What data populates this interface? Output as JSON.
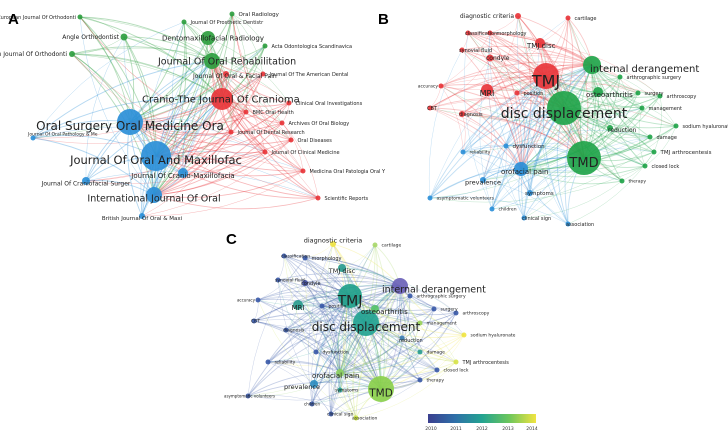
{
  "panels": [
    {
      "letter": "A",
      "nodes": [
        {
          "label": "European Journal Of Orthodonti",
          "color": "#2e9e3f"
        },
        {
          "label": "Journal Of Prosthetic Dentistr",
          "color": "#2e9e3f"
        },
        {
          "label": "Oral Radiology",
          "color": "#2e9e3f"
        },
        {
          "label": "Angle Orthodontist",
          "color": "#2e9e3f"
        },
        {
          "label": "Dentomaxillofacial Radiology",
          "color": "#2e9e3f"
        },
        {
          "label": "Acta Odontologica Scandinavica",
          "color": "#2e9e3f"
        },
        {
          "label": "American Journal Of Orthodonti",
          "color": "#2e9e3f"
        },
        {
          "label": "Journal Of Oral Rehabilitation",
          "color": "#2e9e3f"
        },
        {
          "label": "Journal Of Oral & Facial Pain",
          "color": "#e8353a"
        },
        {
          "label": "Journal Of The American Dental",
          "color": "#e8353a"
        },
        {
          "label": "Cranio-The Journal Of Cranioma",
          "color": "#e8353a"
        },
        {
          "label": "Clinical Oral Investigations",
          "color": "#e8353a"
        },
        {
          "label": "Oral Surgery Oral Medicine Ora",
          "color": "#2b8fd8"
        },
        {
          "label": "BMC Oral Health",
          "color": "#e8353a"
        },
        {
          "label": "Archives Of Oral Biology",
          "color": "#e8353a"
        },
        {
          "label": "Journal Of Dental Research",
          "color": "#e8353a"
        },
        {
          "label": "Journal Of Oral Pathology & Me",
          "color": "#2b8fd8"
        },
        {
          "label": "Oral Diseases",
          "color": "#e8353a"
        },
        {
          "label": "Journal Of Oral And Maxillofac",
          "color": "#2b8fd8"
        },
        {
          "label": "Journal Of Clinical Medicine",
          "color": "#e8353a"
        },
        {
          "label": "Journal Of Cranio-Maxillofacia",
          "color": "#2b8fd8"
        },
        {
          "label": "Medicina Oral Patologia Oral Y",
          "color": "#e8353a"
        },
        {
          "label": "Journal Of Craniofacial Surger",
          "color": "#2b8fd8"
        },
        {
          "label": "International Journal Of Oral",
          "color": "#2b8fd8"
        },
        {
          "label": "British Journal Of Oral & Maxi",
          "color": "#2b8fd8"
        },
        {
          "label": "Scientific Reports",
          "color": "#e8353a"
        }
      ]
    },
    {
      "letter": "B",
      "nodes": [
        {
          "label": "diagnostic criteria",
          "color": "#e8353a"
        },
        {
          "label": "cartilage",
          "color": "#e8353a"
        },
        {
          "label": "classification",
          "color": "#e8353a"
        },
        {
          "label": "morphology",
          "color": "#e8353a"
        },
        {
          "label": "TMJ disc",
          "color": "#e8353a"
        },
        {
          "label": "synovial fluid",
          "color": "#e8353a"
        },
        {
          "label": "condyle",
          "color": "#e8353a"
        },
        {
          "label": "TMJ",
          "color": "#e8353a"
        },
        {
          "label": "internal derangement",
          "color": "#21a44a"
        },
        {
          "label": "arthrographic surgery",
          "color": "#21a44a"
        },
        {
          "label": "accuracy",
          "color": "#e8353a"
        },
        {
          "label": "MRI",
          "color": "#e8353a"
        },
        {
          "label": "position",
          "color": "#e8353a"
        },
        {
          "label": "osteoarthritis",
          "color": "#21a44a"
        },
        {
          "label": "surgery",
          "color": "#21a44a"
        },
        {
          "label": "arthroscopy",
          "color": "#21a44a"
        },
        {
          "label": "disc displacement",
          "color": "#21a44a"
        },
        {
          "label": "CBT",
          "color": "#e8353a"
        },
        {
          "label": "diagnosis",
          "color": "#e8353a"
        },
        {
          "label": "reduction",
          "color": "#21a44a"
        },
        {
          "label": "sodium hyaluronate",
          "color": "#21a44a"
        },
        {
          "label": "reliability",
          "color": "#2b8fd8"
        },
        {
          "label": "prevalence",
          "color": "#2b8fd8"
        },
        {
          "label": "orofacial pain",
          "color": "#2b8fd8"
        },
        {
          "label": "dysfunction",
          "color": "#2b8fd8"
        },
        {
          "label": "TMD",
          "color": "#21a44a"
        },
        {
          "label": "TMJ arthrocentesis",
          "color": "#21a44a"
        },
        {
          "label": "closed lock",
          "color": "#21a44a"
        },
        {
          "label": "symptoms",
          "color": "#2b8fd8"
        },
        {
          "label": "therapy",
          "color": "#21a44a"
        },
        {
          "label": "asymptomatic volunteers",
          "color": "#2b8fd8"
        },
        {
          "label": "children",
          "color": "#2b8fd8"
        },
        {
          "label": "clinical sign",
          "color": "#2b8fd8"
        },
        {
          "label": "association",
          "color": "#2b8fd8"
        },
        {
          "label": "management",
          "color": "#21a44a"
        },
        {
          "label": "damage",
          "color": "#21a44a"
        }
      ]
    },
    {
      "letter": "C",
      "nodes": [
        {
          "label": "diagnostic criteria",
          "color": "#f0e442"
        },
        {
          "label": "cartilage",
          "color": "#a8d86a"
        },
        {
          "label": "classification",
          "color": "#3b5aa8"
        },
        {
          "label": "morphology",
          "color": "#3b5aa8"
        },
        {
          "label": "TMJ disc",
          "color": "#2a9c8e"
        },
        {
          "label": "synovial fluid",
          "color": "#3b5aa8"
        },
        {
          "label": "condyle",
          "color": "#3e4a9a"
        },
        {
          "label": "TMJ",
          "color": "#1fa08a"
        },
        {
          "label": "internal derangement",
          "color": "#6b62b8"
        },
        {
          "label": "arthrographic surgery",
          "color": "#3b5aa8"
        },
        {
          "label": "accuracy",
          "color": "#3b5aa8"
        },
        {
          "label": "MRI",
          "color": "#2a9c8e"
        },
        {
          "label": "position",
          "color": "#3b5aa8"
        },
        {
          "label": "osteoarthritis",
          "color": "#56c26a"
        },
        {
          "label": "surgery",
          "color": "#3b5aa8"
        },
        {
          "label": "arthroscopy",
          "color": "#3b5aa8"
        },
        {
          "label": "disc displacement",
          "color": "#23a391"
        },
        {
          "label": "CBT",
          "color": "#3b5aa8"
        },
        {
          "label": "diagnosis",
          "color": "#3b5aa8"
        },
        {
          "label": "reduction",
          "color": "#3b7db0"
        },
        {
          "label": "sodium hyaluronate",
          "color": "#f0e442"
        },
        {
          "label": "management",
          "color": "#9bd45a"
        },
        {
          "label": "damage",
          "color": "#2a9c8e"
        },
        {
          "label": "reliability",
          "color": "#3b5aa8"
        },
        {
          "label": "dysfunction",
          "color": "#3b5aa8"
        },
        {
          "label": "orofacial pain",
          "color": "#8dd060"
        },
        {
          "label": "prevalence",
          "color": "#2e8dc0"
        },
        {
          "label": "TMD",
          "color": "#8bd04c"
        },
        {
          "label": "TMJ arthrocentesis",
          "color": "#d7e34a"
        },
        {
          "label": "closed lock",
          "color": "#3b5aa8"
        },
        {
          "label": "symptoms",
          "color": "#2a9c8e"
        },
        {
          "label": "therapy",
          "color": "#3b5aa8"
        },
        {
          "label": "asymptomatic volunteers",
          "color": "#3b5aa8"
        },
        {
          "label": "children",
          "color": "#3b5aa8"
        },
        {
          "label": "clinical sign",
          "color": "#3b5aa8"
        },
        {
          "label": "association",
          "color": "#c6df3e"
        }
      ],
      "colorbar": {
        "ticks": [
          "2010",
          "2011",
          "2012",
          "2013",
          "2014"
        ],
        "colors": [
          "#3b3f8f",
          "#2f6fa8",
          "#23a391",
          "#6cc65c",
          "#f0e442"
        ]
      }
    }
  ]
}
